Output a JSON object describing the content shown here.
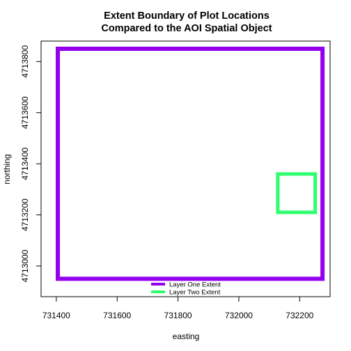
{
  "chart_data": {
    "type": "line",
    "title_line1": "Extent Boundary of Plot Locations",
    "title_line2": "Compared to the AOI Spatial Object",
    "xlabel": "easting",
    "ylabel": "northing",
    "xlim": [
      731350,
      732300
    ],
    "ylim": [
      4712880,
      4713880
    ],
    "x_ticks": [
      731400,
      731600,
      731800,
      732000,
      732200
    ],
    "y_ticks": [
      4713000,
      4713200,
      4713400,
      4713600,
      4713800
    ],
    "grid": false,
    "legend_position": "bottom-center",
    "series": [
      {
        "name": "Layer One Extent",
        "color": "#9400EE",
        "rect": {
          "xmin": 731405,
          "xmax": 732275,
          "ymin": 4712950,
          "ymax": 4713850
        }
      },
      {
        "name": "Layer Two Extent",
        "color": "#2EFF6E",
        "rect": {
          "xmin": 732128,
          "xmax": 732251,
          "ymin": 4713210,
          "ymax": 4713360
        }
      }
    ]
  }
}
